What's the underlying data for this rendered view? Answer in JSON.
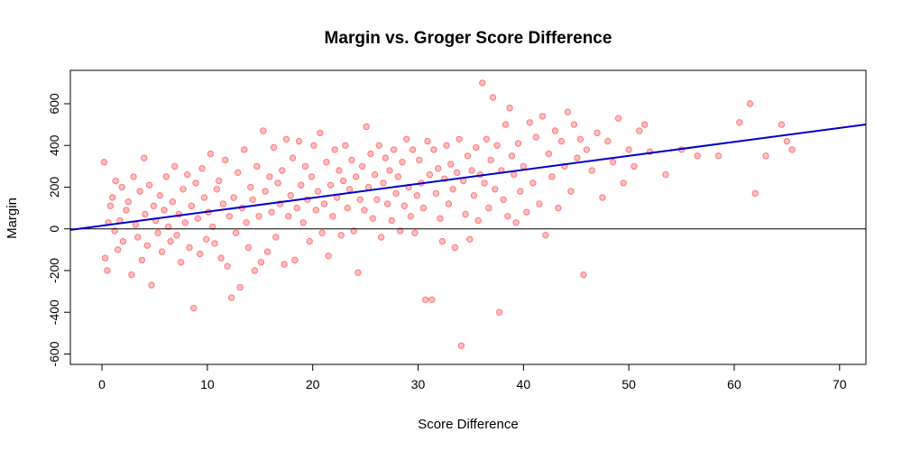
{
  "chart_data": {
    "type": "scatter",
    "title": "Margin vs. Groger Score Difference",
    "xlabel": "Score Difference",
    "ylabel": "Margin",
    "xlim": [
      -3,
      72.5
    ],
    "ylim": [
      -650,
      760
    ],
    "xticks": [
      0,
      10,
      20,
      30,
      40,
      50,
      60,
      70
    ],
    "yticks": [
      -600,
      -400,
      -200,
      0,
      200,
      400,
      600
    ],
    "grid": false,
    "point_color": "#ff0000",
    "line_color": "#0000cc",
    "hline_color": "#000000",
    "regression": {
      "intercept": 15,
      "slope": 6.7
    },
    "hline_y": 0,
    "points": [
      [
        0.2,
        320
      ],
      [
        0.3,
        -140
      ],
      [
        0.5,
        -200
      ],
      [
        0.6,
        30
      ],
      [
        0.8,
        110
      ],
      [
        1.0,
        150
      ],
      [
        1.2,
        -10
      ],
      [
        1.3,
        230
      ],
      [
        1.5,
        -100
      ],
      [
        1.7,
        40
      ],
      [
        1.9,
        200
      ],
      [
        2.0,
        -60
      ],
      [
        2.3,
        90
      ],
      [
        2.5,
        130
      ],
      [
        2.8,
        -220
      ],
      [
        3.0,
        250
      ],
      [
        3.2,
        20
      ],
      [
        3.4,
        -40
      ],
      [
        3.6,
        180
      ],
      [
        3.8,
        -150
      ],
      [
        4.0,
        340
      ],
      [
        4.1,
        70
      ],
      [
        4.3,
        -80
      ],
      [
        4.5,
        210
      ],
      [
        4.7,
        -270
      ],
      [
        4.9,
        110
      ],
      [
        5.1,
        40
      ],
      [
        5.3,
        -20
      ],
      [
        5.5,
        160
      ],
      [
        5.7,
        -110
      ],
      [
        5.9,
        90
      ],
      [
        6.1,
        250
      ],
      [
        6.3,
        10
      ],
      [
        6.5,
        -60
      ],
      [
        6.7,
        130
      ],
      [
        6.9,
        300
      ],
      [
        7.1,
        -30
      ],
      [
        7.3,
        70
      ],
      [
        7.5,
        -160
      ],
      [
        7.7,
        190
      ],
      [
        7.9,
        30
      ],
      [
        8.1,
        260
      ],
      [
        8.3,
        -90
      ],
      [
        8.5,
        110
      ],
      [
        8.7,
        -380
      ],
      [
        8.9,
        220
      ],
      [
        9.1,
        50
      ],
      [
        9.3,
        -120
      ],
      [
        9.5,
        290
      ],
      [
        9.7,
        150
      ],
      [
        9.9,
        -50
      ],
      [
        10.1,
        80
      ],
      [
        10.3,
        360
      ],
      [
        10.5,
        10
      ],
      [
        10.7,
        -70
      ],
      [
        10.9,
        190
      ],
      [
        11.1,
        230
      ],
      [
        11.3,
        -140
      ],
      [
        11.5,
        120
      ],
      [
        11.7,
        330
      ],
      [
        11.9,
        -180
      ],
      [
        12.1,
        60
      ],
      [
        12.3,
        -330
      ],
      [
        12.5,
        150
      ],
      [
        12.7,
        -20
      ],
      [
        12.9,
        270
      ],
      [
        13.1,
        -280
      ],
      [
        13.3,
        100
      ],
      [
        13.5,
        380
      ],
      [
        13.7,
        30
      ],
      [
        13.9,
        -90
      ],
      [
        14.1,
        200
      ],
      [
        14.3,
        140
      ],
      [
        14.5,
        -200
      ],
      [
        14.7,
        300
      ],
      [
        14.9,
        60
      ],
      [
        15.1,
        -160
      ],
      [
        15.3,
        470
      ],
      [
        15.5,
        180
      ],
      [
        15.7,
        -110
      ],
      [
        15.9,
        250
      ],
      [
        16.1,
        80
      ],
      [
        16.3,
        390
      ],
      [
        16.5,
        -40
      ],
      [
        16.7,
        220
      ],
      [
        16.9,
        120
      ],
      [
        17.1,
        280
      ],
      [
        17.3,
        -170
      ],
      [
        17.5,
        430
      ],
      [
        17.7,
        60
      ],
      [
        17.9,
        160
      ],
      [
        18.1,
        340
      ],
      [
        18.3,
        -150
      ],
      [
        18.5,
        100
      ],
      [
        18.7,
        420
      ],
      [
        18.9,
        210
      ],
      [
        19.1,
        30
      ],
      [
        19.3,
        300
      ],
      [
        19.5,
        140
      ],
      [
        19.7,
        -60
      ],
      [
        19.9,
        250
      ],
      [
        20.1,
        400
      ],
      [
        20.3,
        90
      ],
      [
        20.5,
        180
      ],
      [
        20.7,
        460
      ],
      [
        20.9,
        -20
      ],
      [
        21.1,
        120
      ],
      [
        21.3,
        320
      ],
      [
        21.5,
        -130
      ],
      [
        21.7,
        210
      ],
      [
        21.9,
        60
      ],
      [
        22.1,
        380
      ],
      [
        22.3,
        150
      ],
      [
        22.5,
        280
      ],
      [
        22.7,
        -30
      ],
      [
        22.9,
        230
      ],
      [
        23.1,
        400
      ],
      [
        23.3,
        100
      ],
      [
        23.5,
        190
      ],
      [
        23.7,
        330
      ],
      [
        23.9,
        -10
      ],
      [
        24.1,
        250
      ],
      [
        24.3,
        -210
      ],
      [
        24.5,
        140
      ],
      [
        24.7,
        300
      ],
      [
        24.9,
        90
      ],
      [
        25.1,
        490
      ],
      [
        25.3,
        200
      ],
      [
        25.5,
        360
      ],
      [
        25.7,
        50
      ],
      [
        25.9,
        260
      ],
      [
        26.1,
        140
      ],
      [
        26.3,
        400
      ],
      [
        26.5,
        -40
      ],
      [
        26.7,
        220
      ],
      [
        26.9,
        340
      ],
      [
        27.1,
        120
      ],
      [
        27.3,
        280
      ],
      [
        27.5,
        40
      ],
      [
        27.7,
        380
      ],
      [
        27.9,
        170
      ],
      [
        28.1,
        250
      ],
      [
        28.3,
        -10
      ],
      [
        28.5,
        320
      ],
      [
        28.7,
        110
      ],
      [
        28.9,
        430
      ],
      [
        29.1,
        200
      ],
      [
        29.3,
        60
      ],
      [
        29.5,
        380
      ],
      [
        29.7,
        -20
      ],
      [
        29.9,
        160
      ],
      [
        30.1,
        330
      ],
      [
        30.3,
        220
      ],
      [
        30.5,
        100
      ],
      [
        30.7,
        -340
      ],
      [
        30.9,
        420
      ],
      [
        31.1,
        260
      ],
      [
        31.3,
        -340
      ],
      [
        31.5,
        380
      ],
      [
        31.7,
        170
      ],
      [
        31.9,
        290
      ],
      [
        32.1,
        50
      ],
      [
        32.3,
        -60
      ],
      [
        32.5,
        240
      ],
      [
        32.7,
        400
      ],
      [
        32.9,
        120
      ],
      [
        33.1,
        310
      ],
      [
        33.3,
        190
      ],
      [
        33.5,
        -90
      ],
      [
        33.7,
        270
      ],
      [
        33.9,
        430
      ],
      [
        34.1,
        -560
      ],
      [
        34.3,
        230
      ],
      [
        34.5,
        70
      ],
      [
        34.7,
        350
      ],
      [
        34.9,
        -50
      ],
      [
        35.1,
        280
      ],
      [
        35.3,
        160
      ],
      [
        35.5,
        390
      ],
      [
        35.7,
        40
      ],
      [
        35.9,
        260
      ],
      [
        36.1,
        700
      ],
      [
        36.3,
        220
      ],
      [
        36.5,
        430
      ],
      [
        36.7,
        100
      ],
      [
        36.9,
        330
      ],
      [
        37.1,
        630
      ],
      [
        37.3,
        190
      ],
      [
        37.5,
        400
      ],
      [
        37.7,
        -400
      ],
      [
        37.9,
        280
      ],
      [
        38.1,
        140
      ],
      [
        38.3,
        500
      ],
      [
        38.5,
        60
      ],
      [
        38.7,
        580
      ],
      [
        38.9,
        350
      ],
      [
        39.1,
        260
      ],
      [
        39.3,
        30
      ],
      [
        39.5,
        410
      ],
      [
        39.7,
        180
      ],
      [
        40.0,
        300
      ],
      [
        40.3,
        80
      ],
      [
        40.6,
        510
      ],
      [
        40.9,
        220
      ],
      [
        41.2,
        440
      ],
      [
        41.5,
        120
      ],
      [
        41.8,
        540
      ],
      [
        42.1,
        -30
      ],
      [
        42.4,
        360
      ],
      [
        42.7,
        250
      ],
      [
        43.0,
        470
      ],
      [
        43.3,
        100
      ],
      [
        43.6,
        420
      ],
      [
        43.9,
        300
      ],
      [
        44.2,
        560
      ],
      [
        44.5,
        180
      ],
      [
        44.8,
        500
      ],
      [
        45.1,
        340
      ],
      [
        45.4,
        430
      ],
      [
        45.7,
        -220
      ],
      [
        46.0,
        380
      ],
      [
        46.5,
        280
      ],
      [
        47.0,
        460
      ],
      [
        47.5,
        150
      ],
      [
        48.0,
        420
      ],
      [
        48.5,
        320
      ],
      [
        49.0,
        530
      ],
      [
        49.5,
        220
      ],
      [
        50.0,
        380
      ],
      [
        50.5,
        300
      ],
      [
        51.0,
        470
      ],
      [
        51.5,
        500
      ],
      [
        52.0,
        370
      ],
      [
        53.5,
        260
      ],
      [
        55.0,
        380
      ],
      [
        56.5,
        350
      ],
      [
        58.5,
        350
      ],
      [
        60.5,
        510
      ],
      [
        61.5,
        600
      ],
      [
        62.0,
        170
      ],
      [
        63.0,
        350
      ],
      [
        64.5,
        500
      ],
      [
        65.0,
        420
      ],
      [
        65.5,
        380
      ]
    ]
  }
}
